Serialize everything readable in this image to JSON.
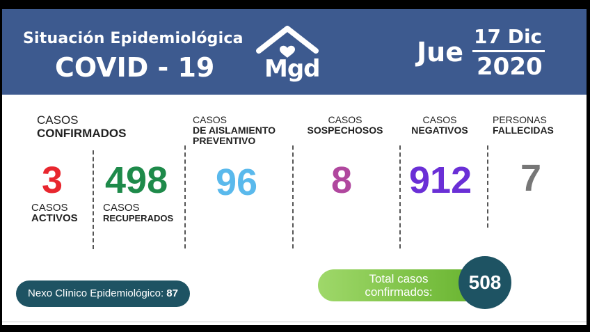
{
  "header": {
    "title_line1": "Situación Epidemiológica",
    "title_line2": "COVID - 19",
    "logo_text": "Mgd",
    "day": "Jue",
    "date": "17 Dic",
    "year": "2020",
    "logo_icon": "house-heart-icon"
  },
  "stats": {
    "confirmados": {
      "label_top": "CASOS",
      "label_bold": "CONFIRMADOS"
    },
    "activos": {
      "value": "3",
      "label_top": "CASOS",
      "label_bold": "ACTIVOS",
      "color": "#e8262e"
    },
    "recuperados": {
      "value": "498",
      "label_top": "CASOS",
      "label_bold": "RECUPERADOS",
      "color": "#1e8a4a"
    },
    "aislamiento": {
      "value": "96",
      "label_top": "CASOS",
      "label_bold1": "DE AISLAMIENTO",
      "label_bold2": "PREVENTIVO",
      "color": "#5ab9ec"
    },
    "sospechosos": {
      "value": "8",
      "label_top": "CASOS",
      "label_bold": "SOSPECHOSOS",
      "color": "#b0479e"
    },
    "negativos": {
      "value": "912",
      "label_top": "CASOS",
      "label_bold": "NEGATIVOS",
      "color": "#6a2fd6"
    },
    "fallecidas": {
      "value": "7",
      "label_top": "PERSONAS",
      "label_bold": "FALLECIDAS",
      "color": "#777777"
    }
  },
  "nexo": {
    "label": "Nexo Clínico Epidemiológico:",
    "value": "87"
  },
  "total": {
    "label_line1": "Total casos",
    "label_line2": "confirmados:",
    "value": "508"
  },
  "colors": {
    "header_bg": "#3d5a8f",
    "dark_teal": "#1e5363",
    "green": "#7cc443"
  }
}
